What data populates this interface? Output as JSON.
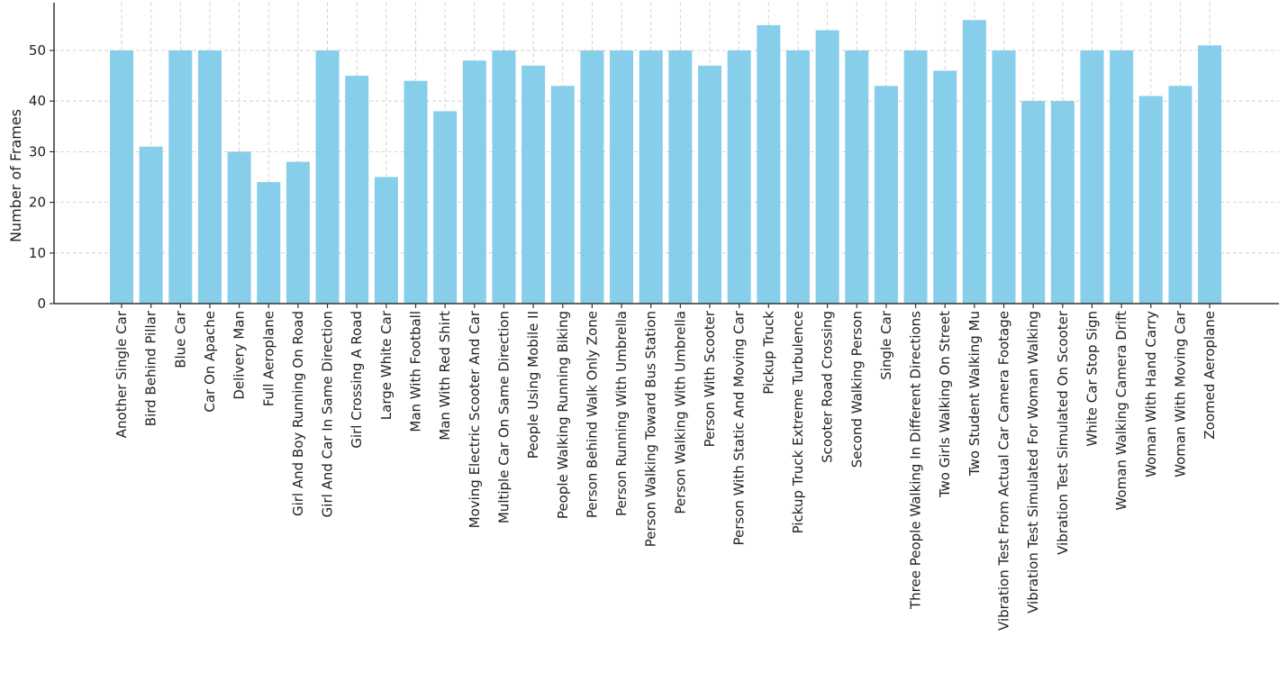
{
  "chart_data": {
    "type": "bar",
    "title": "",
    "xlabel": "",
    "ylabel": "Number of Frames",
    "ylim": [
      0,
      57
    ],
    "yticks": [
      0,
      10,
      20,
      30,
      40,
      50
    ],
    "grid": true,
    "bar_color": "#87ceeb",
    "categories": [
      "Another Single Car",
      "Bird Behind Pillar",
      "Blue Car",
      "Car On Apache",
      "Delivery Man",
      "Full Aeroplane",
      "Girl And Boy Running On Road",
      "Girl And Car In Same Direction",
      "Girl Crossing A Road",
      "Large White Car",
      "Man With Football",
      "Man With Red Shirt",
      "Moving Electric Scooter And Car",
      "Multiple Car On Same Direction",
      "People Using Mobile II",
      "People Walking Running Biking",
      "Person Behind Walk Only Zone",
      "Person Running With Umbrella",
      "Person Walking Toward Bus Station",
      "Person Walking With Umbrella",
      "Person With Scooter",
      "Person With Static And Moving Car",
      "Pickup Truck",
      "Pickup Truck Extreme Turbulence",
      "Scooter Road Crossing",
      "Second Walking Person",
      "Single Car",
      "Three People Walking In Different Directions",
      "Two Girls Walking On Street",
      "Two Student Walking Mu",
      "Vibration Test From Actual Car Camera Footage",
      "Vibration Test Simulated For Woman Walking",
      "Vibration Test Simulated On Scooter",
      "White Car Stop Sign",
      "Woman Walking Camera Drift",
      "Woman With Hand Carry",
      "Woman With Moving Car",
      "Zoomed Aeroplane"
    ],
    "values": [
      50,
      31,
      50,
      50,
      30,
      24,
      28,
      50,
      45,
      25,
      44,
      38,
      48,
      50,
      47,
      43,
      50,
      50,
      50,
      50,
      47,
      50,
      55,
      50,
      54,
      50,
      43,
      50,
      46,
      56,
      50,
      40,
      40,
      50,
      50,
      41,
      43,
      51
    ]
  }
}
